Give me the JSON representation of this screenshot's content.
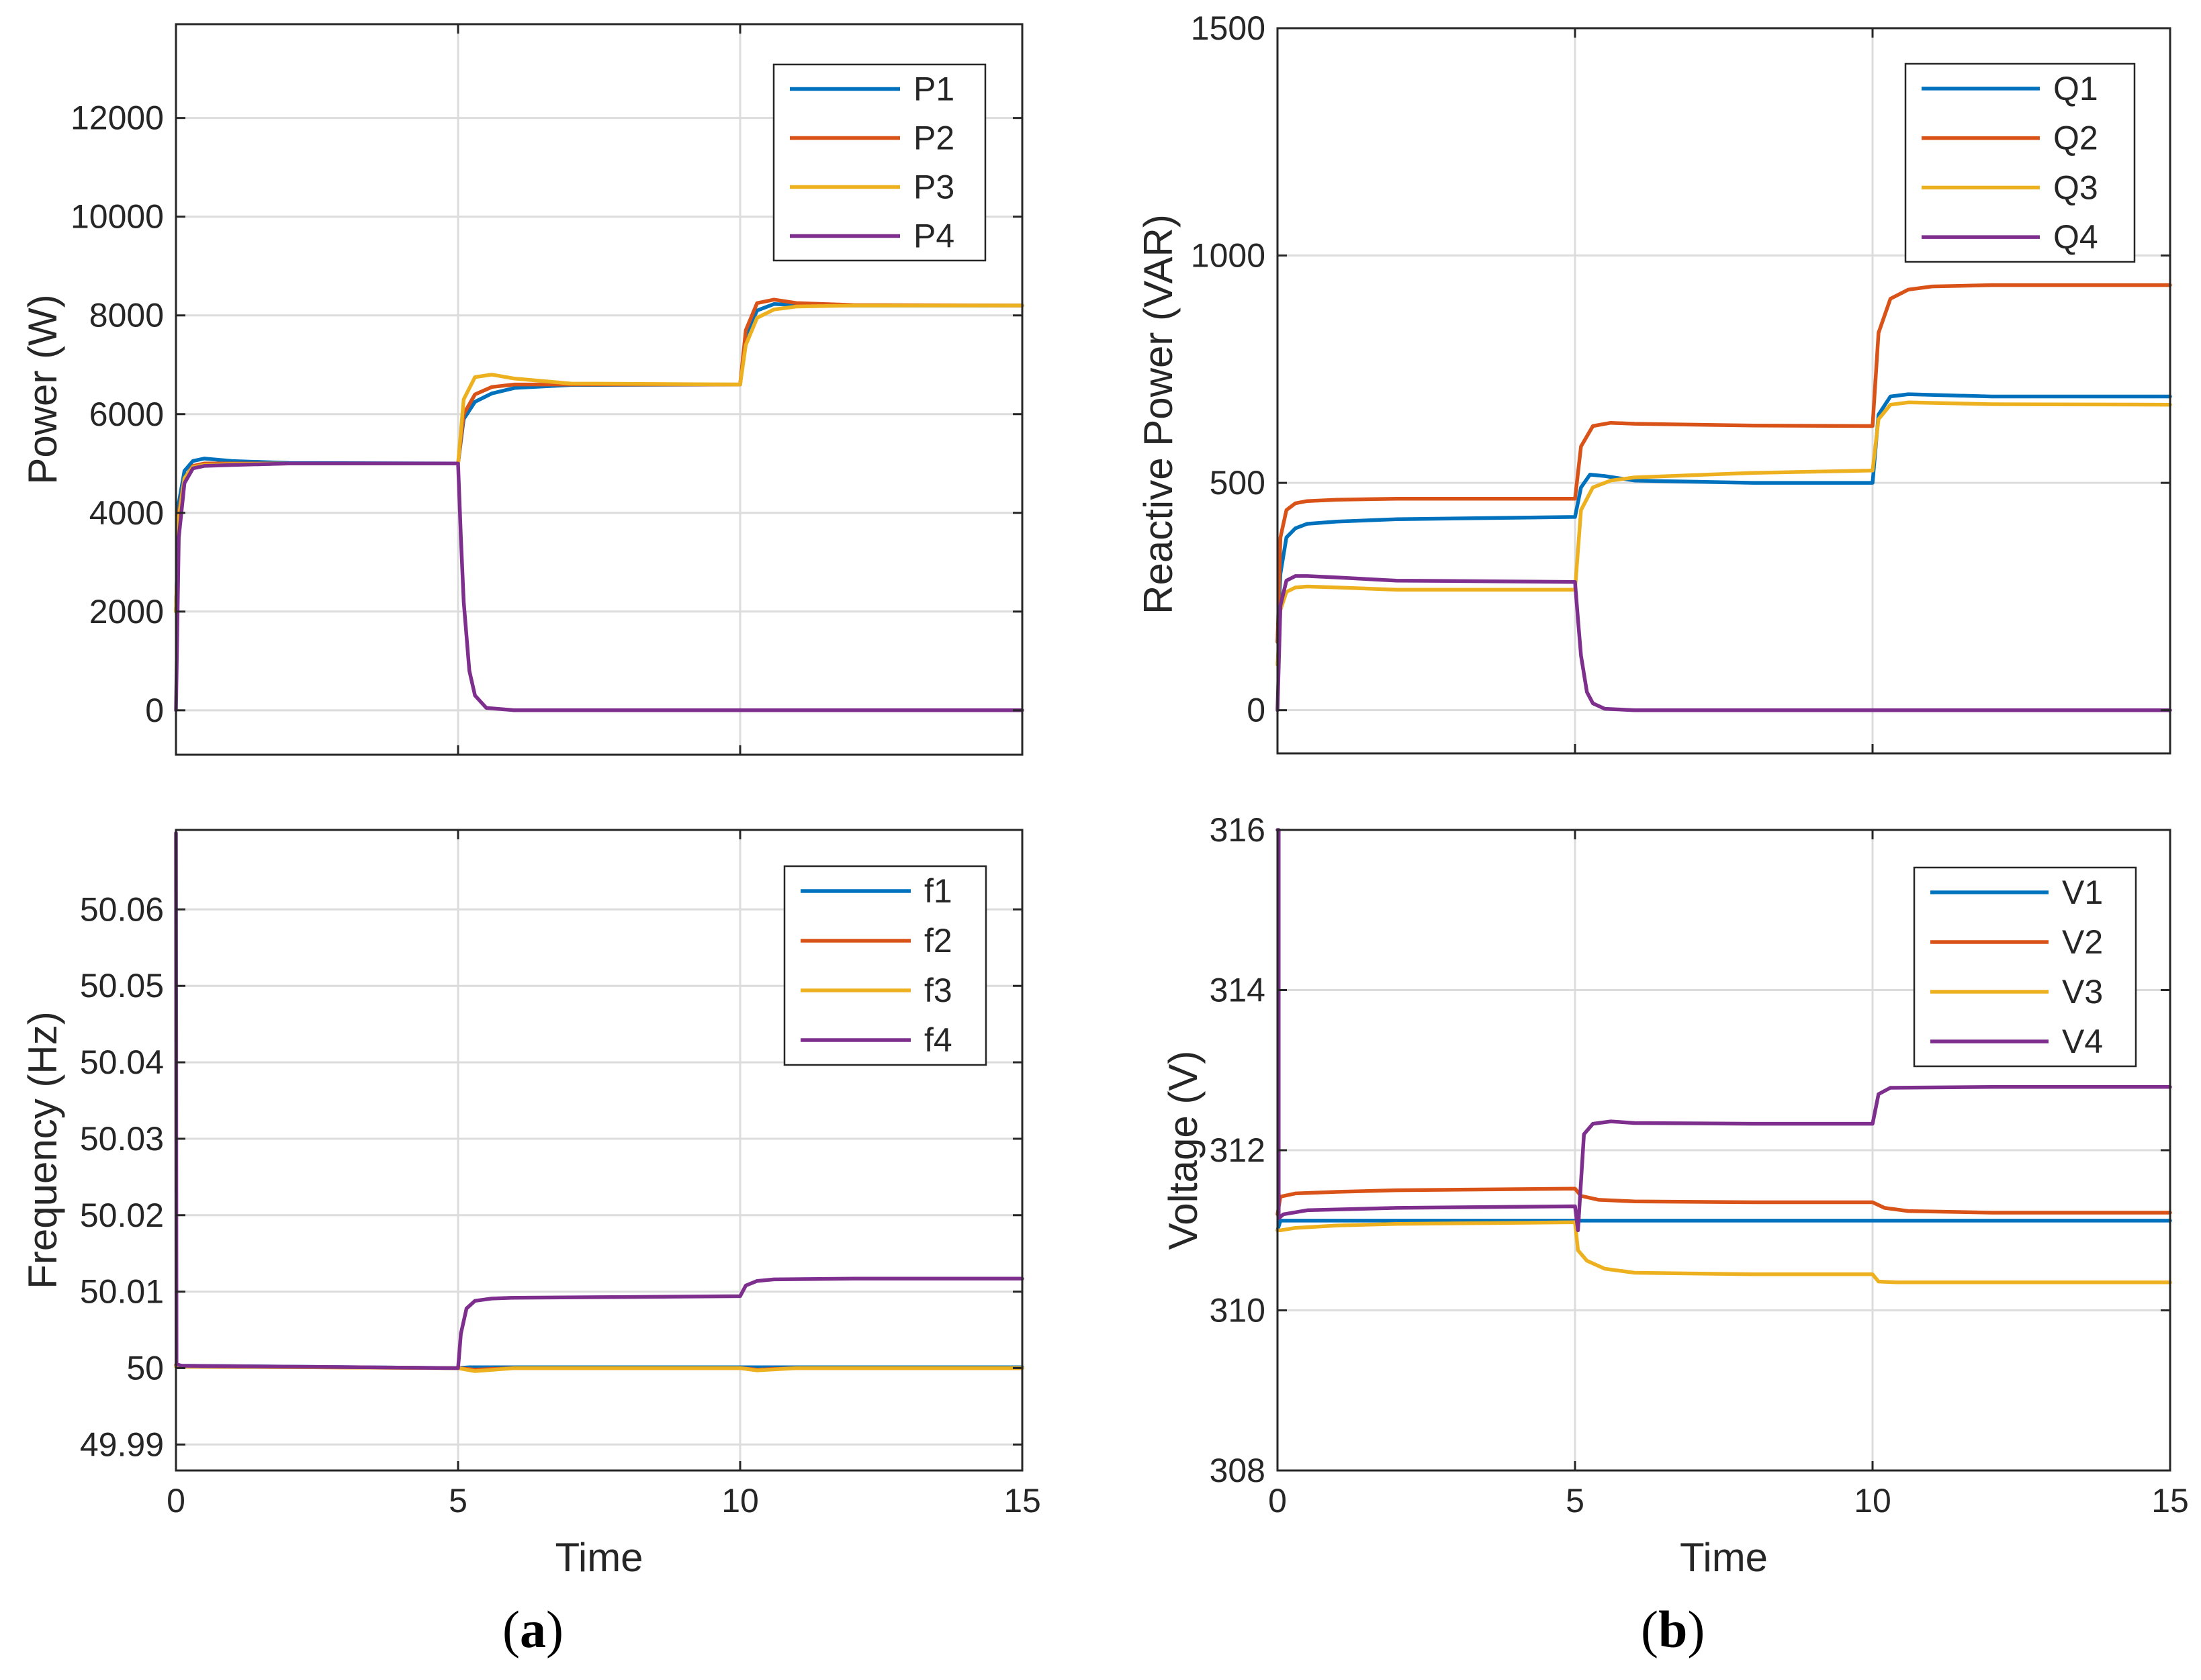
{
  "figure": {
    "panel_labels": [
      {
        "open": "(",
        "letter": "a",
        "close": ")"
      },
      {
        "open": "(",
        "letter": "b",
        "close": ")"
      }
    ]
  },
  "colors": {
    "series1": "#0072BD",
    "series2": "#D95319",
    "series3": "#EDB120",
    "series4": "#7E2F8E",
    "grid": "#dcdcdc",
    "axis": "#262626"
  },
  "chart_data": [
    {
      "id": "power",
      "type": "line",
      "xlabel": "",
      "ylabel": "Power (W)",
      "xlim": [
        0,
        15
      ],
      "ylim": [
        -900,
        13900
      ],
      "xticks": [
        0,
        5,
        10,
        15
      ],
      "yticks": [
        0,
        2000,
        4000,
        6000,
        8000,
        10000,
        12000
      ],
      "show_xtick_labels": false,
      "grid": true,
      "legend": "top-right",
      "series": [
        {
          "name": "P1",
          "color": "#0072BD",
          "x": [
            0,
            0.05,
            0.15,
            0.3,
            0.5,
            1,
            2,
            4.99,
            5.0,
            5.1,
            5.3,
            5.6,
            6,
            7,
            9.99,
            10.0,
            10.1,
            10.3,
            10.6,
            11,
            12,
            15
          ],
          "y": [
            2000,
            4200,
            4850,
            5050,
            5100,
            5050,
            5010,
            5000,
            5000,
            5900,
            6250,
            6420,
            6530,
            6590,
            6600,
            6600,
            7600,
            8100,
            8230,
            8210,
            8200,
            8200
          ]
        },
        {
          "name": "P2",
          "color": "#D95319",
          "x": [
            0,
            0.05,
            0.15,
            0.3,
            0.5,
            1,
            2,
            4.99,
            5.0,
            5.1,
            5.3,
            5.6,
            6,
            7,
            9.99,
            10.0,
            10.1,
            10.3,
            10.6,
            11,
            12,
            15
          ],
          "y": [
            2000,
            4000,
            4700,
            4950,
            5000,
            5000,
            5000,
            5000,
            5000,
            6000,
            6400,
            6550,
            6600,
            6600,
            6600,
            6600,
            7700,
            8250,
            8320,
            8250,
            8210,
            8200
          ]
        },
        {
          "name": "P3",
          "color": "#EDB120",
          "x": [
            0,
            0.05,
            0.15,
            0.3,
            0.5,
            1,
            2,
            4.99,
            5.0,
            5.1,
            5.3,
            5.6,
            6,
            7,
            9.99,
            10.0,
            10.1,
            10.3,
            10.6,
            11,
            12,
            15
          ],
          "y": [
            2000,
            3900,
            4700,
            4930,
            4970,
            4990,
            5000,
            5000,
            5000,
            6300,
            6750,
            6800,
            6720,
            6620,
            6600,
            6600,
            7400,
            7950,
            8120,
            8180,
            8200,
            8200
          ]
        },
        {
          "name": "P4",
          "color": "#7E2F8E",
          "x": [
            0,
            0.05,
            0.15,
            0.3,
            0.5,
            1,
            2,
            4.99,
            5.0,
            5.05,
            5.1,
            5.2,
            5.3,
            5.5,
            6,
            15
          ],
          "y": [
            0,
            3500,
            4600,
            4900,
            4950,
            4970,
            5000,
            5000,
            5000,
            3500,
            2200,
            800,
            300,
            50,
            0,
            0
          ]
        }
      ]
    },
    {
      "id": "reactive",
      "type": "line",
      "xlabel": "",
      "ylabel": "Reactive Power (VAR)",
      "xlim": [
        0,
        15
      ],
      "ylim": [
        -95,
        1500
      ],
      "xticks": [
        0,
        5,
        10,
        15
      ],
      "yticks": [
        0,
        500,
        1000,
        1500
      ],
      "show_xtick_labels": false,
      "grid": true,
      "legend": "top-right",
      "series": [
        {
          "name": "Q1",
          "color": "#0072BD",
          "x": [
            0,
            0.05,
            0.15,
            0.3,
            0.5,
            1,
            2,
            4.99,
            5.0,
            5.1,
            5.25,
            5.5,
            6,
            8,
            9.99,
            10.0,
            10.1,
            10.3,
            10.6,
            12,
            15
          ],
          "y": [
            150,
            300,
            380,
            400,
            410,
            415,
            420,
            425,
            425,
            490,
            518,
            515,
            505,
            500,
            500,
            500,
            650,
            690,
            695,
            690,
            690
          ]
        },
        {
          "name": "Q2",
          "color": "#D95319",
          "x": [
            0,
            0.05,
            0.15,
            0.3,
            0.5,
            1,
            2,
            4.99,
            5.0,
            5.1,
            5.3,
            5.6,
            6,
            8,
            9.99,
            10.0,
            10.1,
            10.3,
            10.6,
            11,
            12,
            15
          ],
          "y": [
            150,
            380,
            440,
            455,
            460,
            463,
            465,
            465,
            465,
            580,
            625,
            632,
            630,
            626,
            625,
            625,
            830,
            905,
            925,
            932,
            935,
            935
          ]
        },
        {
          "name": "Q3",
          "color": "#EDB120",
          "x": [
            0,
            0.05,
            0.15,
            0.3,
            0.5,
            1,
            2,
            4.99,
            5.0,
            5.1,
            5.3,
            5.6,
            6,
            8,
            9.99,
            10.0,
            10.1,
            10.3,
            10.6,
            12,
            15
          ],
          "y": [
            100,
            220,
            260,
            270,
            272,
            270,
            265,
            265,
            265,
            440,
            490,
            505,
            512,
            522,
            527,
            527,
            640,
            672,
            677,
            673,
            672
          ]
        },
        {
          "name": "Q4",
          "color": "#7E2F8E",
          "x": [
            0,
            0.05,
            0.15,
            0.3,
            0.5,
            1,
            2,
            4.99,
            5.0,
            5.05,
            5.1,
            5.2,
            5.3,
            5.5,
            6,
            15
          ],
          "y": [
            0,
            230,
            285,
            295,
            295,
            292,
            285,
            282,
            282,
            200,
            120,
            40,
            15,
            3,
            0,
            0
          ]
        }
      ]
    },
    {
      "id": "frequency",
      "type": "line",
      "xlabel": "Time",
      "ylabel": "Frequency (Hz)",
      "xlim": [
        0,
        15
      ],
      "ylim": [
        49.9866,
        50.0704
      ],
      "xticks": [
        0,
        5,
        10,
        15
      ],
      "yticks": [
        49.99,
        50,
        50.01,
        50.02,
        50.03,
        50.04,
        50.05,
        50.06
      ],
      "ytick_labels": [
        "49.99",
        "50",
        "50.01",
        "50.02",
        "50.03",
        "50.04",
        "50.05",
        "50.06"
      ],
      "show_xtick_labels": true,
      "grid": true,
      "legend": "top-right",
      "series": [
        {
          "name": "f1",
          "color": "#0072BD",
          "x": [
            0,
            0.2,
            5,
            5.2,
            10,
            15
          ],
          "y": [
            50.0003,
            50.0003,
            50.0,
            50.0001,
            50.0001,
            50.0001
          ]
        },
        {
          "name": "f2",
          "color": "#D95319",
          "x": [
            0,
            0.2,
            5,
            5.3,
            6,
            10,
            10.3,
            11,
            15
          ],
          "y": [
            50.0004,
            50.0002,
            50.0,
            49.9998,
            50.0,
            50.0,
            49.9998,
            50.0,
            50.0
          ]
        },
        {
          "name": "f3",
          "color": "#EDB120",
          "x": [
            0,
            0.2,
            5,
            5.3,
            6,
            10,
            10.3,
            11,
            15
          ],
          "y": [
            50.0002,
            50.0002,
            50.0,
            49.9996,
            50.0,
            50.0,
            49.9997,
            50.0,
            50.0
          ]
        },
        {
          "name": "f4",
          "color": "#7E2F8E",
          "x": [
            0,
            0,
            0.01,
            0.1,
            5,
            5.05,
            5.15,
            5.3,
            5.6,
            6,
            8,
            9.99,
            10.0,
            10.1,
            10.3,
            10.6,
            12,
            15
          ],
          "y": [
            50.07,
            50.07,
            50.0005,
            50.0003,
            50.0,
            50.0045,
            50.0078,
            50.0088,
            50.0091,
            50.0092,
            50.0093,
            50.0094,
            50.0094,
            50.0108,
            50.0114,
            50.0116,
            50.0117,
            50.0117
          ]
        }
      ]
    },
    {
      "id": "voltage",
      "type": "line",
      "xlabel": "Time",
      "ylabel": "Voltage (V)",
      "xlim": [
        0,
        15
      ],
      "ylim": [
        308,
        316
      ],
      "xticks": [
        0,
        5,
        10,
        15
      ],
      "yticks": [
        308,
        310,
        312,
        314,
        316
      ],
      "show_xtick_labels": true,
      "grid": true,
      "legend": "top-right",
      "series": [
        {
          "name": "V1",
          "color": "#0072BD",
          "x": [
            0,
            0.05,
            0.3,
            1,
            5,
            5.2,
            10,
            15
          ],
          "y": [
            311.0,
            311.12,
            311.12,
            311.12,
            311.12,
            311.12,
            311.12,
            311.12
          ]
        },
        {
          "name": "V2",
          "color": "#D95319",
          "x": [
            0,
            0.05,
            0.3,
            1,
            2,
            4.99,
            5.0,
            5.1,
            5.4,
            6,
            8,
            9.99,
            10.0,
            10.2,
            10.6,
            12,
            15
          ],
          "y": [
            311.2,
            311.42,
            311.46,
            311.48,
            311.5,
            311.52,
            311.52,
            311.43,
            311.38,
            311.36,
            311.35,
            311.35,
            311.35,
            311.28,
            311.24,
            311.22,
            311.22
          ]
        },
        {
          "name": "V3",
          "color": "#EDB120",
          "x": [
            0,
            0.05,
            0.3,
            1,
            2,
            4.99,
            5.0,
            5.05,
            5.2,
            5.5,
            6,
            8,
            9.99,
            10.0,
            10.1,
            10.4,
            12,
            15
          ],
          "y": [
            311.0,
            311.0,
            311.03,
            311.06,
            311.08,
            311.1,
            311.1,
            310.75,
            310.62,
            310.52,
            310.47,
            310.45,
            310.45,
            310.45,
            310.36,
            310.35,
            310.35,
            310.35
          ]
        },
        {
          "name": "V4",
          "color": "#7E2F8E",
          "x": [
            0,
            0.02,
            0.02,
            0.1,
            0.5,
            2,
            4.99,
            5.0,
            5.05,
            5.15,
            5.3,
            5.6,
            6,
            8,
            9.99,
            10.0,
            10.1,
            10.3,
            12,
            15
          ],
          "y": [
            316.0,
            316.0,
            311.15,
            311.2,
            311.25,
            311.28,
            311.3,
            311.3,
            311.0,
            312.2,
            312.33,
            312.36,
            312.34,
            312.33,
            312.33,
            312.33,
            312.7,
            312.78,
            312.79,
            312.79
          ]
        }
      ]
    }
  ]
}
